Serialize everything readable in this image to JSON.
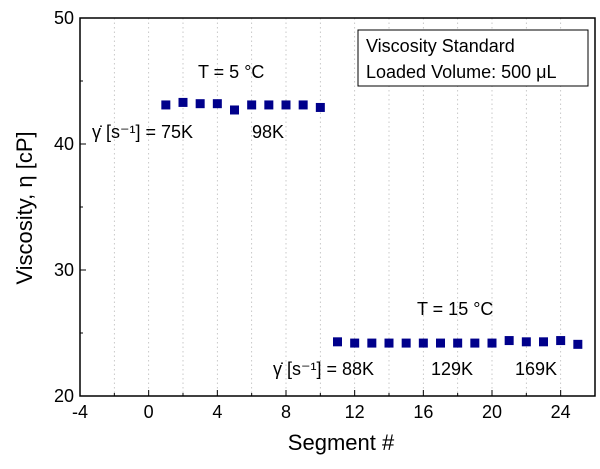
{
  "chart_data": {
    "type": "scatter",
    "xlabel": "Segment #",
    "ylabel": "Viscosity, η [cP]",
    "xlim": [
      -4,
      26
    ],
    "ylim": [
      20,
      50
    ],
    "xticks": [
      -4,
      0,
      4,
      8,
      12,
      16,
      20,
      24
    ],
    "yticks": [
      20,
      30,
      40,
      50
    ],
    "grid": "vertical dotted",
    "marker_color": "#00008B",
    "legend_box": {
      "placement": "top-right",
      "lines": [
        "Viscosity Standard",
        "Loaded Volume: 500 μL"
      ]
    },
    "annotations": [
      {
        "id": "temp-5",
        "text": "T = 5 °C"
      },
      {
        "id": "shear-75k",
        "text": "γ̇ [s⁻¹] = 75K"
      },
      {
        "id": "shear-98k",
        "text": "98K"
      },
      {
        "id": "temp-15",
        "text": "T = 15 °C"
      },
      {
        "id": "shear-88k",
        "text": "γ̇ [s⁻¹] = 88K"
      },
      {
        "id": "shear-129k",
        "text": "129K"
      },
      {
        "id": "shear-169k",
        "text": "169K"
      }
    ],
    "series": [
      {
        "x": [
          1,
          2,
          3,
          4,
          5,
          6,
          7,
          8,
          9,
          10
        ],
        "y": [
          43.1,
          43.3,
          43.2,
          43.2,
          42.7,
          43.1,
          43.1,
          43.1,
          43.1,
          42.9
        ]
      },
      {
        "x": [
          11,
          12,
          13,
          14,
          15,
          16,
          17,
          18,
          19,
          20,
          21,
          22,
          23,
          24,
          25
        ],
        "y": [
          24.3,
          24.2,
          24.2,
          24.2,
          24.2,
          24.2,
          24.2,
          24.2,
          24.2,
          24.2,
          24.4,
          24.3,
          24.3,
          24.4,
          24.1
        ]
      }
    ]
  }
}
